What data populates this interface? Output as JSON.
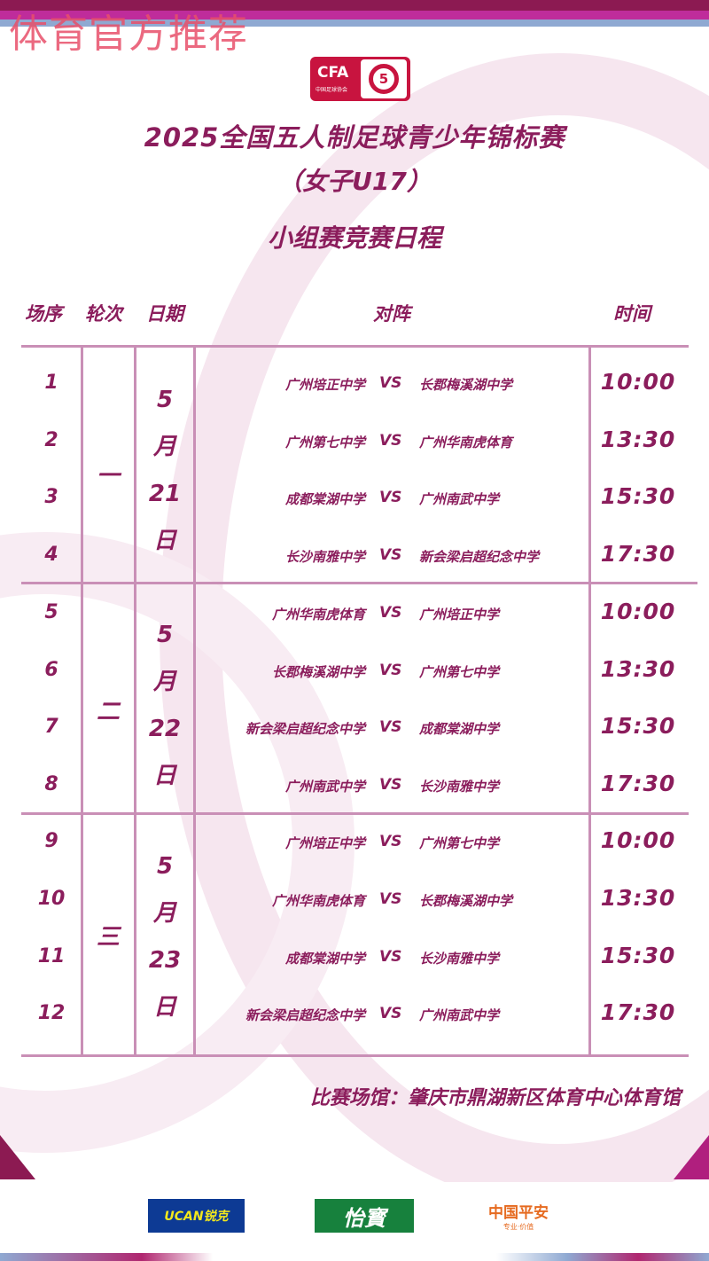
{
  "watermark": "体育官方推荐",
  "logo": {
    "cfa": "CFA",
    "cfa_sub": "中国足球协会",
    "five": "5"
  },
  "title": {
    "line1": "2025全国五人制足球青少年锦标赛",
    "line2": "（女子U17）",
    "line3": "小组赛竞赛日程"
  },
  "headers": {
    "no": "场序",
    "round": "轮次",
    "date": "日期",
    "match": "对阵",
    "time": "时间"
  },
  "vs": "VS",
  "groups": [
    {
      "round": "一",
      "date": [
        "5",
        "月",
        "21",
        "日"
      ],
      "matches": [
        {
          "no": "1",
          "home": "广州培正中学",
          "away": "长郡梅溪湖中学",
          "time": "10:00"
        },
        {
          "no": "2",
          "home": "广州第七中学",
          "away": "广州华南虎体育",
          "time": "13:30"
        },
        {
          "no": "3",
          "home": "成都棠湖中学",
          "away": "广州南武中学",
          "time": "15:30"
        },
        {
          "no": "4",
          "home": "长沙南雅中学",
          "away": "新会梁启超纪念中学",
          "time": "17:30"
        }
      ]
    },
    {
      "round": "二",
      "date": [
        "5",
        "月",
        "22",
        "日"
      ],
      "matches": [
        {
          "no": "5",
          "home": "广州华南虎体育",
          "away": "广州培正中学",
          "time": "10:00"
        },
        {
          "no": "6",
          "home": "长郡梅溪湖中学",
          "away": "广州第七中学",
          "time": "13:30"
        },
        {
          "no": "7",
          "home": "新会梁启超纪念中学",
          "away": "成都棠湖中学",
          "time": "15:30"
        },
        {
          "no": "8",
          "home": "广州南武中学",
          "away": "长沙南雅中学",
          "time": "17:30"
        }
      ]
    },
    {
      "round": "三",
      "date": [
        "5",
        "月",
        "23",
        "日"
      ],
      "matches": [
        {
          "no": "9",
          "home": "广州培正中学",
          "away": "广州第七中学",
          "time": "10:00"
        },
        {
          "no": "10",
          "home": "广州华南虎体育",
          "away": "长郡梅溪湖中学",
          "time": "13:30"
        },
        {
          "no": "11",
          "home": "成都棠湖中学",
          "away": "长沙南雅中学",
          "time": "15:30"
        },
        {
          "no": "12",
          "home": "新会梁启超纪念中学",
          "away": "广州南武中学",
          "time": "17:30"
        }
      ]
    }
  ],
  "venue": "比赛场馆：肇庆市鼎湖新区体育中心体育馆",
  "sponsors": {
    "ucan": "UCAN锐克",
    "yibao": "怡寳",
    "pingan": "中国平安",
    "pingan_sub": "专业·价值"
  },
  "colors": {
    "primary": "#8b1d5c",
    "line": "#c98fb6",
    "cfa_red": "#c8143f"
  }
}
